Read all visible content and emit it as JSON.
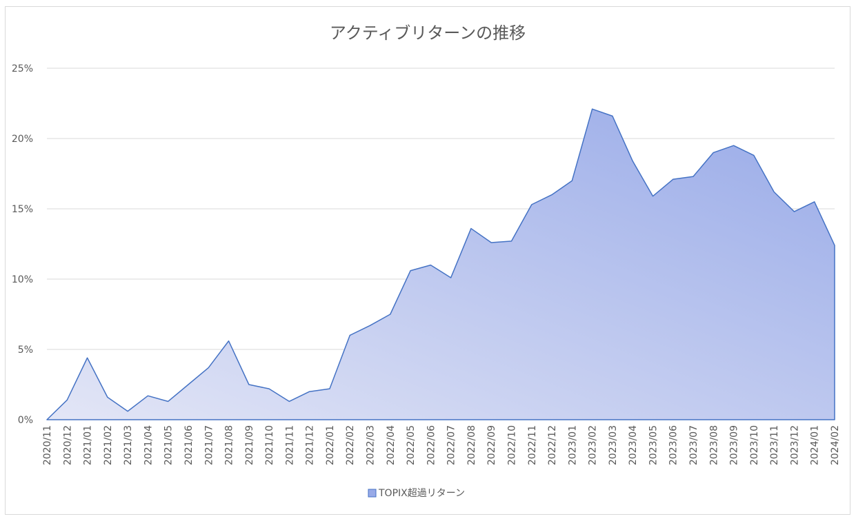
{
  "chart_data": {
    "type": "area",
    "title": "アクティブリターンの推移",
    "xlabel": "",
    "ylabel": "",
    "ylim": [
      0,
      25
    ],
    "y_ticks": [
      "0%",
      "5%",
      "10%",
      "15%",
      "20%",
      "25%"
    ],
    "grid": true,
    "legend_position": "bottom",
    "categories": [
      "2020/11",
      "2020/12",
      "2021/01",
      "2021/02",
      "2021/03",
      "2021/04",
      "2021/05",
      "2021/06",
      "2021/07",
      "2021/08",
      "2021/09",
      "2021/10",
      "2021/11",
      "2021/12",
      "2022/01",
      "2022/02",
      "2022/03",
      "2022/04",
      "2022/05",
      "2022/06",
      "2022/07",
      "2022/08",
      "2022/09",
      "2022/10",
      "2022/11",
      "2022/12",
      "2023/01",
      "2023/02",
      "2023/03",
      "2023/04",
      "2023/05",
      "2023/06",
      "2023/07",
      "2023/08",
      "2023/09",
      "2023/10",
      "2023/11",
      "2023/12",
      "2024/01",
      "2024/02"
    ],
    "series": [
      {
        "name": "TOPIX超過リターン",
        "values": [
          0.0,
          1.4,
          4.4,
          1.6,
          0.6,
          1.7,
          1.3,
          2.5,
          3.7,
          5.6,
          2.5,
          2.2,
          1.3,
          2.0,
          2.2,
          6.0,
          6.7,
          7.5,
          10.6,
          11.0,
          10.1,
          13.6,
          12.6,
          12.7,
          15.3,
          16.0,
          17.0,
          22.1,
          21.6,
          18.4,
          15.9,
          17.1,
          17.3,
          19.0,
          19.5,
          18.8,
          16.2,
          14.8,
          15.5,
          12.4
        ]
      }
    ],
    "colors": {
      "fill_light": "#e3e6f6",
      "fill_dark": "#98aae8",
      "line": "#4472c4",
      "grid": "#d9d9d9",
      "text": "#595959"
    }
  }
}
